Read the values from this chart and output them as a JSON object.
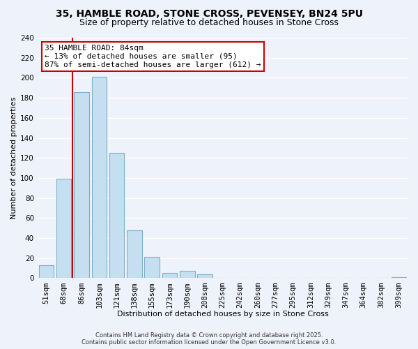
{
  "title1": "35, HAMBLE ROAD, STONE CROSS, PEVENSEY, BN24 5PU",
  "title2": "Size of property relative to detached houses in Stone Cross",
  "xlabel": "Distribution of detached houses by size in Stone Cross",
  "ylabel": "Number of detached properties",
  "bar_labels": [
    "51sqm",
    "68sqm",
    "86sqm",
    "103sqm",
    "121sqm",
    "138sqm",
    "155sqm",
    "173sqm",
    "190sqm",
    "208sqm",
    "225sqm",
    "242sqm",
    "260sqm",
    "277sqm",
    "295sqm",
    "312sqm",
    "329sqm",
    "347sqm",
    "364sqm",
    "382sqm",
    "399sqm"
  ],
  "bar_heights": [
    13,
    99,
    186,
    201,
    125,
    48,
    21,
    5,
    7,
    4,
    0,
    0,
    0,
    0,
    0,
    0,
    0,
    0,
    0,
    0,
    1
  ],
  "bar_color": "#c5dff0",
  "bar_edge_color": "#7ab0cc",
  "vline_color": "#cc0000",
  "annotation_line1": "35 HAMBLE ROAD: 84sqm",
  "annotation_line2": "← 13% of detached houses are smaller (95)",
  "annotation_line3": "87% of semi-detached houses are larger (612) →",
  "annotation_box_color": "#ffffff",
  "annotation_box_edge": "#cc0000",
  "ylim": [
    0,
    240
  ],
  "yticks": [
    0,
    20,
    40,
    60,
    80,
    100,
    120,
    140,
    160,
    180,
    200,
    220,
    240
  ],
  "footer1": "Contains HM Land Registry data © Crown copyright and database right 2025.",
  "footer2": "Contains public sector information licensed under the Open Government Licence v3.0.",
  "bg_color": "#eef2fa",
  "grid_color": "#ffffff",
  "title_fontsize": 10,
  "subtitle_fontsize": 9,
  "axis_fontsize": 8,
  "tick_fontsize": 7.5,
  "footer_fontsize": 6
}
